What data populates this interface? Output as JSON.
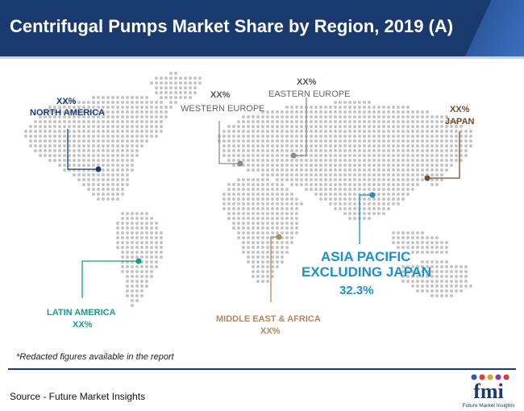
{
  "title": "Centrifugal Pumps Market Share by Region, 2019 (A)",
  "regions": {
    "north_america": {
      "name": "NORTH AMERICA",
      "value": "XX%",
      "color": "#1a3a6e"
    },
    "western_europe": {
      "name": "WESTERN EUROPE",
      "value": "XX%",
      "color": "#808080"
    },
    "eastern_europe": {
      "name": "EASTERN EUROPE",
      "value": "XX%",
      "color": "#808080"
    },
    "japan": {
      "name": "JAPAN",
      "value": "XX%",
      "color": "#7a4a2a"
    },
    "asia_pacific": {
      "name_line1": "ASIA PACIFIC",
      "name_line2": "EXCLUDING JAPAN",
      "value": "32.3%",
      "color": "#1e90c8"
    },
    "latin_america": {
      "name": "LATIN AMERICA",
      "value": "XX%",
      "color": "#1a9a8e"
    },
    "mea": {
      "name": "MIDDLE EAST & AFRICA",
      "value": "XX%",
      "color": "#b08a5a"
    }
  },
  "footnote": "*Redacted figures available in the report",
  "source": "Source - Future Market Insights",
  "logo": {
    "text": "fmi",
    "tagline": "Future Market Insights"
  }
}
